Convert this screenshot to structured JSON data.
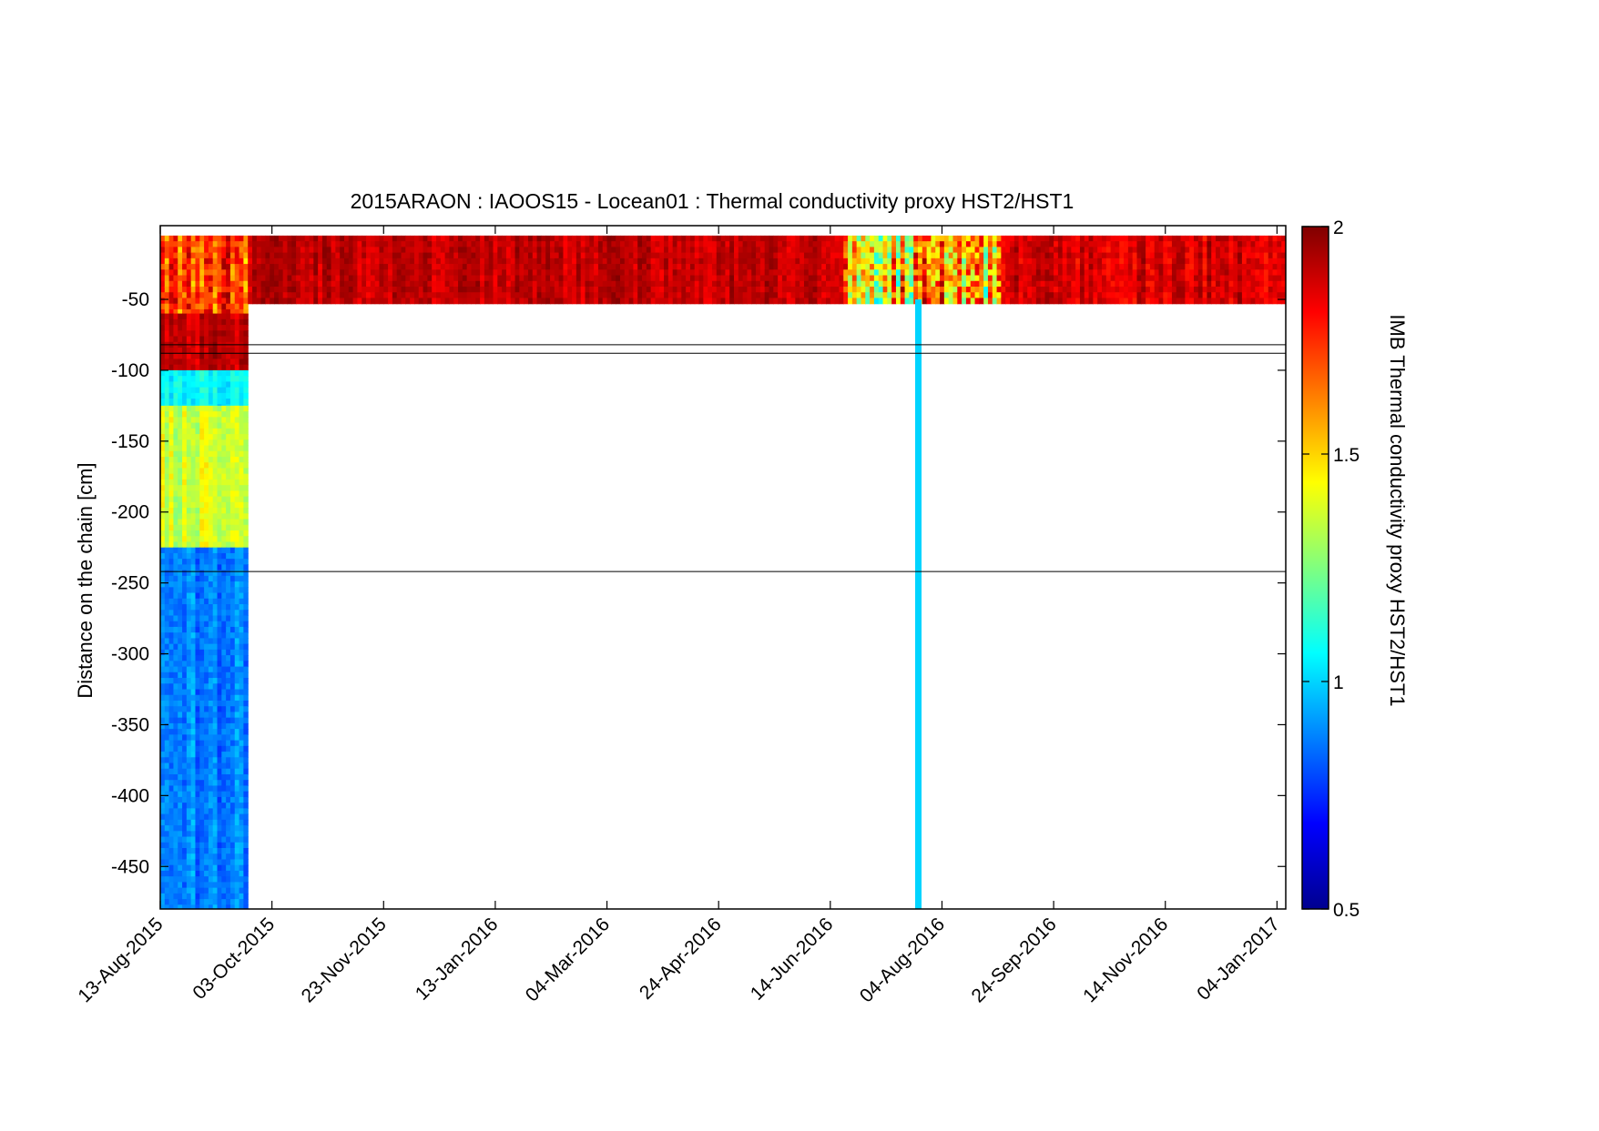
{
  "chart_data": {
    "type": "heatmap",
    "title": "2015ARAON : IAOOS15 - Locean01 : Thermal conductivity proxy HST2/HST1",
    "ylabel": "Distance on the chain [cm]",
    "xlabel": "",
    "colorbar_label": "IMB Thermal conductivity proxy HST2/HST1",
    "colormap": "jet",
    "clim": [
      0.5,
      2
    ],
    "colorbar_ticks": [
      "0.5",
      "1",
      "1.5",
      "2"
    ],
    "colorbar_tick_values": [
      0.5,
      1,
      1.5,
      2
    ],
    "xlim": [
      "2015-08-13",
      "2017-01-08"
    ],
    "ylim": [
      -480,
      2
    ],
    "x_ticks": [
      "13-Aug-2015",
      "03-Oct-2015",
      "23-Nov-2015",
      "13-Jan-2016",
      "04-Mar-2016",
      "24-Apr-2016",
      "14-Jun-2016",
      "04-Aug-2016",
      "24-Sep-2016",
      "14-Nov-2016",
      "04-Jan-2017"
    ],
    "x_tick_dates": [
      "2015-08-13",
      "2015-10-03",
      "2015-11-23",
      "2016-01-13",
      "2016-03-04",
      "2016-04-24",
      "2016-06-14",
      "2016-08-04",
      "2016-09-24",
      "2016-11-14",
      "2017-01-04"
    ],
    "y_ticks": [
      "-50",
      "-100",
      "-150",
      "-200",
      "-250",
      "-300",
      "-350",
      "-400",
      "-450"
    ],
    "y_tick_values": [
      -50,
      -100,
      -150,
      -200,
      -250,
      -300,
      -350,
      -400,
      -450
    ],
    "reference_lines_cm": [
      -82,
      -88,
      -242
    ],
    "data_coverage": [
      {
        "from": "2015-08-13",
        "to": "2015-09-22",
        "depth_from": -2,
        "depth_to": -480
      },
      {
        "from": "2015-09-22",
        "to": "2017-01-08",
        "depth_from": -2,
        "depth_to": -50
      },
      {
        "date": "2016-07-24",
        "depth_from": -50,
        "depth_to": -480,
        "value": 1.0
      }
    ],
    "regions": [
      {
        "from": "2015-08-13",
        "to": "2015-09-22",
        "depth_from": -5,
        "depth_to": -60,
        "value_range": [
          1.4,
          2.0
        ]
      },
      {
        "from": "2015-08-13",
        "to": "2015-09-22",
        "depth_from": -60,
        "depth_to": -100,
        "value_range": [
          1.8,
          2.0
        ]
      },
      {
        "from": "2015-08-13",
        "to": "2015-09-22",
        "depth_from": -100,
        "depth_to": -125,
        "value_range": [
          0.95,
          1.15
        ]
      },
      {
        "from": "2015-08-13",
        "to": "2015-09-22",
        "depth_from": -125,
        "depth_to": -225,
        "value_range": [
          1.25,
          1.5
        ]
      },
      {
        "from": "2015-08-13",
        "to": "2015-09-22",
        "depth_from": -225,
        "depth_to": -480,
        "value_range": [
          0.75,
          1.0
        ]
      },
      {
        "from": "2015-09-22",
        "to": "2016-06-20",
        "depth_from": -5,
        "depth_to": -50,
        "value_range": [
          1.8,
          2.0
        ]
      },
      {
        "from": "2016-06-20",
        "to": "2016-08-31",
        "depth_from": -5,
        "depth_to": -50,
        "value_range": [
          1.0,
          2.0
        ]
      },
      {
        "from": "2016-08-31",
        "to": "2017-01-08",
        "depth_from": -5,
        "depth_to": -50,
        "value_range": [
          1.75,
          2.0
        ]
      }
    ]
  }
}
